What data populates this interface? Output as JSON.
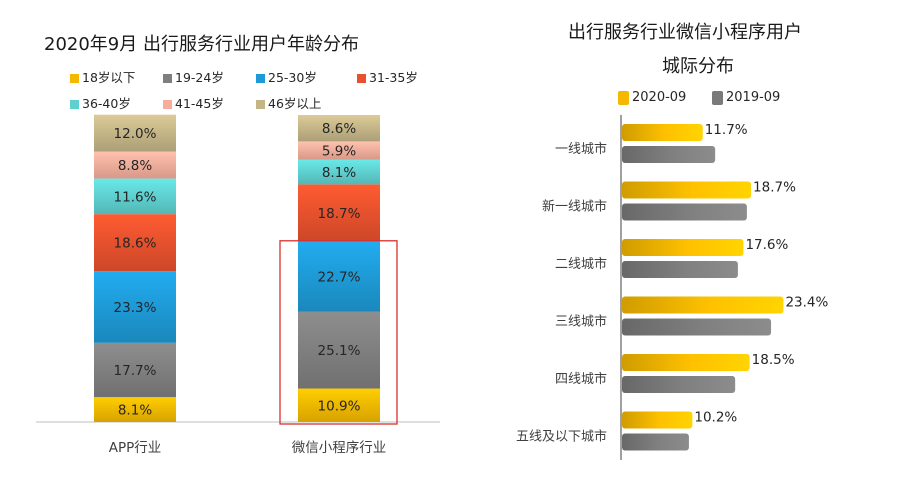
{
  "left": {
    "title": "2020年9月 出行服务行业用户年龄分布",
    "chart_data": {
      "type": "bar",
      "stacked": true,
      "categories": [
        "APP行业",
        "微信小程序行业"
      ],
      "series": [
        {
          "name": "18岁以下",
          "color": "#f5b800",
          "values": [
            8.1,
            10.9
          ]
        },
        {
          "name": "19-24岁",
          "color": "#7f7f7f",
          "values": [
            17.7,
            25.1
          ]
        },
        {
          "name": "25-30岁",
          "color": "#1e9ad6",
          "values": [
            23.3,
            22.7
          ]
        },
        {
          "name": "31-35岁",
          "color": "#e8512d",
          "values": [
            18.6,
            18.7
          ]
        },
        {
          "name": "36-40岁",
          "color": "#5ed0cf",
          "values": [
            11.6,
            8.1
          ]
        },
        {
          "name": "41-45岁",
          "color": "#f7ad9b",
          "values": [
            8.8,
            5.9
          ]
        },
        {
          "name": "46岁以上",
          "color": "#c4b587",
          "values": [
            12.0,
            8.6
          ]
        }
      ],
      "value_labels": [
        [
          "8.1%",
          "17.7%",
          "23.3%",
          "18.6%",
          "11.6%",
          "8.8%",
          "12.0%"
        ],
        [
          "10.9%",
          "25.1%",
          "22.7%",
          "18.7%",
          "8.1%",
          "5.9%",
          "8.6%"
        ]
      ],
      "highlight": {
        "category": "微信小程序行业",
        "series": [
          "18岁以下",
          "19-24岁",
          "25-30岁"
        ],
        "color": "#d9302c"
      },
      "ylim": [
        0,
        100
      ]
    }
  },
  "right": {
    "title_line1": "出行服务行业微信小程序用户",
    "title_line2": "城际分布",
    "chart_data": {
      "type": "bar",
      "orientation": "horizontal",
      "categories": [
        "一线城市",
        "新一线城市",
        "二线城市",
        "三线城市",
        "四线城市",
        "五线及以下城市"
      ],
      "series": [
        {
          "name": "2020-09",
          "color": "#f5b800",
          "values": [
            11.7,
            18.7,
            17.6,
            23.4,
            18.5,
            10.2
          ]
        },
        {
          "name": "2019-09",
          "color": "#7a7a7a",
          "values": [
            13.5,
            18.1,
            16.8,
            21.6,
            16.4,
            9.7
          ]
        }
      ],
      "value_labels": [
        "11.7%",
        "18.7%",
        "17.6%",
        "23.4%",
        "18.5%",
        "10.2%"
      ],
      "xlim": [
        0,
        25
      ]
    }
  }
}
